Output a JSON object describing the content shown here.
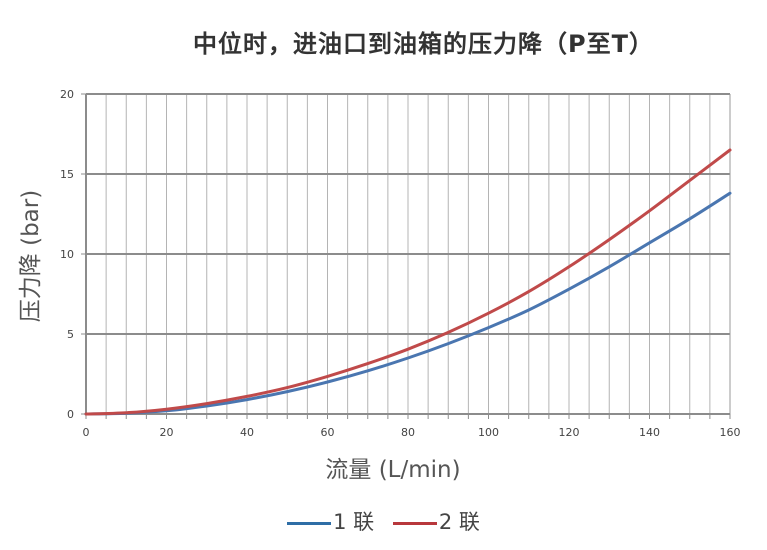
{
  "chart_data": {
    "type": "line",
    "title": "中位时，进油口到油箱的压力降（P至T）",
    "xlabel": "流量 (L/min)",
    "ylabel": "压力降 (bar)",
    "xlim": [
      0,
      160
    ],
    "ylim": [
      0,
      20
    ],
    "x_ticks": [
      "0",
      "20",
      "40",
      "60",
      "80",
      "100",
      "120",
      "140",
      "160"
    ],
    "y_ticks": [
      "0",
      "5",
      "10",
      "15",
      "20"
    ],
    "grid": true,
    "legend_position": "bottom",
    "series": [
      {
        "name": "1 联",
        "color": "#4a76b0",
        "x": [
          0,
          10,
          20,
          30,
          40,
          50,
          60,
          70,
          80,
          90,
          100,
          110,
          120,
          130,
          140,
          150,
          160
        ],
        "y": [
          0,
          0.05,
          0.2,
          0.5,
          0.9,
          1.4,
          2.0,
          2.7,
          3.5,
          4.4,
          5.4,
          6.5,
          7.8,
          9.2,
          10.7,
          12.2,
          13.8
        ]
      },
      {
        "name": "2 联",
        "color": "#c04a4a",
        "x": [
          0,
          10,
          20,
          30,
          40,
          50,
          60,
          70,
          80,
          90,
          100,
          110,
          120,
          130,
          140,
          150,
          160
        ],
        "y": [
          0,
          0.08,
          0.3,
          0.65,
          1.1,
          1.65,
          2.35,
          3.15,
          4.05,
          5.1,
          6.3,
          7.65,
          9.2,
          10.9,
          12.7,
          14.6,
          16.5
        ]
      }
    ]
  }
}
